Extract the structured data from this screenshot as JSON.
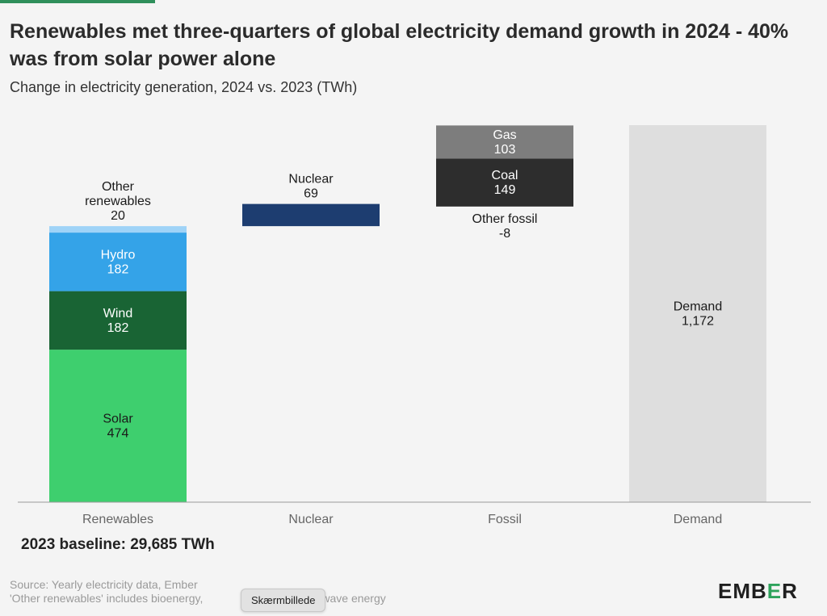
{
  "header": {
    "title": "Renewables met three-quarters of global electricity demand growth in 2024 - 40% was from solar power alone",
    "subtitle": "Change in electricity generation, 2024 vs. 2023 (TWh)"
  },
  "baseline_note": "2023 baseline: 29,685 TWh",
  "footer": {
    "source_line1": "Source: Yearly electricity data, Ember",
    "source_line2": "'Other renewables' includes bioenergy,",
    "source_line2_tail": "and wave energy",
    "logo_prefix": "EMB",
    "logo_e": "E",
    "logo_suffix": "R"
  },
  "tooltip": {
    "text": "Skærmbillede"
  },
  "colors": {
    "solar": "#3ecf6e",
    "wind": "#196434",
    "hydro": "#34a3e8",
    "other_renewables": "#9fd3f7",
    "nuclear": "#1d3d70",
    "coal": "#2d2d2d",
    "gas": "#7d7d7d",
    "other_fossil": "#dcdcdc",
    "demand": "#dedede",
    "logo_accent": "#2ea35c"
  },
  "chart_data": {
    "type": "bar",
    "subtype": "waterfall-stacked",
    "categories": [
      "Renewables",
      "Nuclear",
      "Fossil",
      "Demand"
    ],
    "unit": "TWh",
    "grid": false,
    "segments": [
      {
        "category": "Renewables",
        "name": "Solar",
        "value": 474,
        "display": "474",
        "start": 0,
        "color_key": "solar",
        "label_color": "#1a1a1a",
        "label_pos": "inside"
      },
      {
        "category": "Renewables",
        "name": "Wind",
        "value": 182,
        "display": "182",
        "start": 474,
        "color_key": "wind",
        "label_color": "#ffffff",
        "label_pos": "inside"
      },
      {
        "category": "Renewables",
        "name": "Hydro",
        "value": 182,
        "display": "182",
        "start": 656,
        "color_key": "hydro",
        "label_color": "#ffffff",
        "label_pos": "inside"
      },
      {
        "category": "Renewables",
        "name": "Other renewables",
        "value": 20,
        "display": "20",
        "start": 838,
        "color_key": "other_renewables",
        "label_color": "#1a1a1a",
        "label_pos": "above",
        "label_lines": [
          "Other",
          "renewables"
        ]
      },
      {
        "category": "Nuclear",
        "name": "Nuclear",
        "value": 69,
        "display": "69",
        "start": 858,
        "color_key": "nuclear",
        "label_color": "#1a1a1a",
        "label_pos": "above"
      },
      {
        "category": "Fossil",
        "name": "Other fossil",
        "value": -8,
        "display": "-8",
        "start": 927,
        "color_key": "other_fossil",
        "label_color": "#1a1a1a",
        "label_pos": "below"
      },
      {
        "category": "Fossil",
        "name": "Coal",
        "value": 149,
        "display": "149",
        "start": 919,
        "color_key": "coal",
        "label_color": "#ffffff",
        "label_pos": "inside"
      },
      {
        "category": "Fossil",
        "name": "Gas",
        "value": 103,
        "display": "103",
        "start": 1068,
        "color_key": "gas",
        "label_color": "#ffffff",
        "label_pos": "inside"
      },
      {
        "category": "Demand",
        "name": "Demand",
        "value": 1172,
        "display": "1,172",
        "start": 0,
        "color_key": "demand",
        "label_color": "#1a1a1a",
        "label_pos": "inside"
      }
    ],
    "ylim": [
      0,
      1172
    ]
  }
}
